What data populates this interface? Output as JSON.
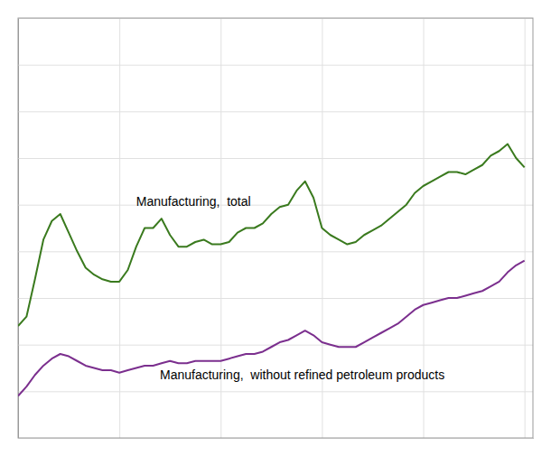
{
  "chart_data": {
    "type": "line",
    "x": [
      2000.0,
      2000.25,
      2000.5,
      2000.75,
      2001.0,
      2001.25,
      2001.5,
      2001.75,
      2002.0,
      2002.25,
      2002.5,
      2002.75,
      2003.0,
      2003.25,
      2003.5,
      2003.75,
      2004.0,
      2004.25,
      2004.5,
      2004.75,
      2005.0,
      2005.25,
      2005.5,
      2005.75,
      2006.0,
      2006.25,
      2006.5,
      2006.75,
      2007.0,
      2007.25,
      2007.5,
      2007.75,
      2008.0,
      2008.25,
      2008.5,
      2008.75,
      2009.0,
      2009.25,
      2009.5,
      2009.75,
      2010.0,
      2010.25,
      2010.5,
      2010.75,
      2011.0,
      2011.25,
      2011.5,
      2011.75,
      2012.0,
      2012.25,
      2012.5,
      2012.75,
      2013.0,
      2013.25,
      2013.5,
      2013.75,
      2014.0,
      2014.25,
      2014.5,
      2014.75,
      2015.0
    ],
    "series": [
      {
        "color": "#3a7a1e",
        "values": [
          108,
          112,
          128,
          145,
          153,
          156,
          148,
          140,
          133,
          130,
          128,
          127,
          127,
          132,
          142,
          150,
          150,
          154,
          147,
          142,
          142,
          144,
          145,
          143,
          143,
          144,
          148,
          150,
          150,
          152,
          156,
          159,
          160,
          166,
          170,
          163,
          150,
          147,
          145,
          143,
          144,
          147,
          149,
          151,
          154,
          157,
          160,
          165,
          168,
          170,
          172,
          174,
          174,
          173,
          175,
          177,
          181,
          183,
          186,
          180,
          176
        ]
      },
      {
        "color": "#7b2f8e",
        "values": [
          78,
          82,
          87,
          91,
          94,
          96,
          95,
          93,
          91,
          90,
          89,
          89,
          88,
          89,
          90,
          91,
          91,
          92,
          93,
          92,
          92,
          93,
          93,
          93,
          93,
          94,
          95,
          96,
          96,
          97,
          99,
          101,
          102,
          104,
          106,
          104,
          101,
          100,
          99,
          99,
          99,
          101,
          103,
          105,
          107,
          109,
          112,
          115,
          117,
          118,
          119,
          120,
          120,
          121,
          122,
          123,
          125,
          127,
          131,
          134,
          136
        ]
      }
    ],
    "annotations": [
      {
        "text": "Manufacturing,  total",
        "x": 2003.5,
        "y": 158
      },
      {
        "text": "Manufacturing,  without refined petroleum products",
        "x": 2004.2,
        "y": 84
      }
    ],
    "xlim": [
      2000.0,
      2015.25
    ],
    "ylim": [
      60,
      240
    ],
    "xticks": [
      2000,
      2003,
      2006,
      2009,
      2012,
      2015
    ],
    "yticks": [
      60,
      80,
      100,
      120,
      140,
      160,
      180,
      200,
      220,
      240
    ],
    "grid": true,
    "tick_labels": false
  }
}
